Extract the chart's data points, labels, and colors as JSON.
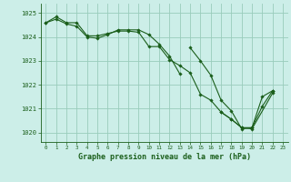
{
  "title": "Graphe pression niveau de la mer (hPa)",
  "bg_color": "#cceee8",
  "grid_color": "#99ccbb",
  "line_color": "#1a5e1a",
  "marker_color": "#1a5e1a",
  "ylim": [
    1019.6,
    1025.4
  ],
  "xlim": [
    -0.5,
    23.5
  ],
  "yticks": [
    1020,
    1021,
    1022,
    1023,
    1024,
    1025
  ],
  "xticks": [
    0,
    1,
    2,
    3,
    4,
    5,
    6,
    7,
    8,
    9,
    10,
    11,
    12,
    13,
    14,
    15,
    16,
    17,
    18,
    19,
    20,
    21,
    22,
    23
  ],
  "series": [
    [
      1024.6,
      1024.85,
      1024.6,
      1024.6,
      1024.05,
      1024.05,
      1024.15,
      1024.25,
      1024.25,
      1024.2,
      1023.6,
      1023.6,
      1023.05,
      1022.8,
      1022.5,
      1021.6,
      1021.35,
      1020.85,
      1020.55,
      1020.2,
      1020.2,
      1021.1,
      1021.75,
      null
    ],
    [
      1024.6,
      1024.75,
      1024.55,
      1024.45,
      1024.0,
      1023.95,
      1024.1,
      1024.3,
      1024.3,
      1024.3,
      1024.1,
      1023.7,
      1023.2,
      1022.45,
      null,
      null,
      null,
      null,
      null,
      null,
      null,
      null,
      null,
      null
    ],
    [
      null,
      null,
      null,
      null,
      null,
      null,
      null,
      null,
      null,
      null,
      null,
      null,
      null,
      null,
      1023.55,
      1023.0,
      1022.4,
      1021.35,
      1020.9,
      1020.15,
      1020.2,
      1021.5,
      1021.75,
      null
    ],
    [
      null,
      null,
      null,
      null,
      null,
      null,
      null,
      null,
      null,
      null,
      null,
      null,
      null,
      null,
      null,
      null,
      null,
      1020.85,
      1020.55,
      1020.2,
      1020.15,
      null,
      1021.65,
      null
    ]
  ]
}
